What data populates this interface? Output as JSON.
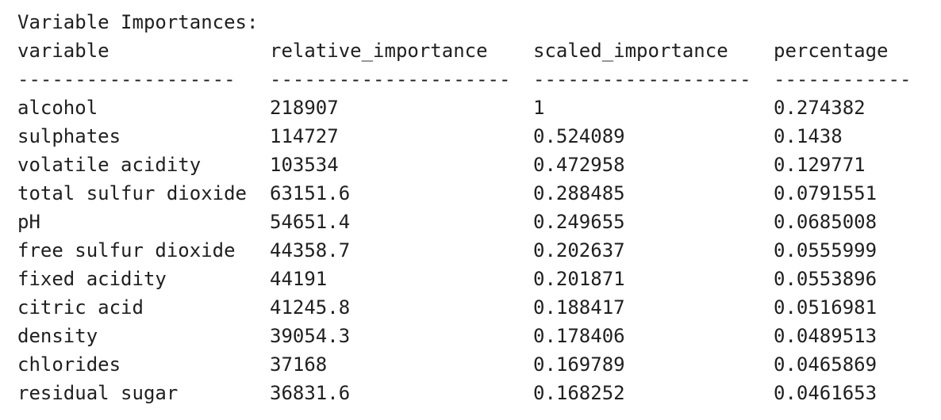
{
  "title": "Variable Importances:",
  "headers": [
    "variable",
    "relative_importance",
    "scaled_importance",
    "percentage"
  ],
  "separators": [
    "-------------------",
    "---------------------",
    "-------------------",
    "------------"
  ],
  "rows": [
    [
      "alcohol",
      "218907",
      "1",
      "0.274382"
    ],
    [
      "sulphates",
      "114727",
      "0.524089",
      "0.1438"
    ],
    [
      "volatile acidity",
      "103534",
      "0.472958",
      "0.129771"
    ],
    [
      "total sulfur dioxide",
      "63151.6",
      "0.288485",
      "0.0791551"
    ],
    [
      "pH",
      "54651.4",
      "0.249655",
      "0.0685008"
    ],
    [
      "free sulfur dioxide",
      "44358.7",
      "0.202637",
      "0.0555999"
    ],
    [
      "fixed acidity",
      "44191",
      "0.201871",
      "0.0553896"
    ],
    [
      "citric acid",
      "41245.8",
      "0.188417",
      "0.0516981"
    ],
    [
      "density",
      "39054.3",
      "0.178406",
      "0.0489513"
    ],
    [
      "chlorides",
      "37168",
      "0.169789",
      "0.0465869"
    ],
    [
      "residual sugar",
      "36831.6",
      "0.168252",
      "0.0461653"
    ]
  ]
}
